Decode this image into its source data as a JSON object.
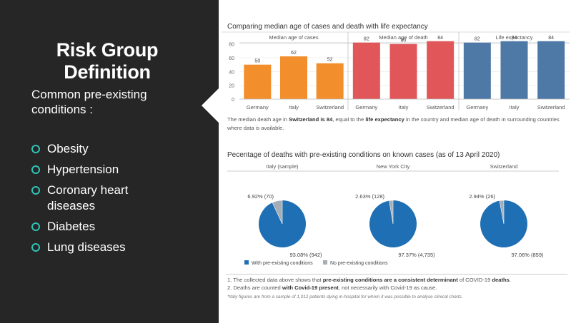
{
  "slide": {
    "title_line1": "Risk Group",
    "title_line2": "Definition",
    "subtitle": "Common pre-existing conditions :",
    "bullets": [
      "Obesity",
      "Hypertension",
      "Coronary heart diseases",
      "Diabetes",
      "Lung diseases"
    ],
    "bullet_color": "#2ec4b6",
    "left_bg": "#262626"
  },
  "age_chart": {
    "title": "Comparing median age of cases and death with life expectancy",
    "note_parts": [
      "The median death age in ",
      "Switzerland is 84",
      ", equal to the ",
      "life expectancy",
      " in the country and median age of death in surrounding countries where data is available."
    ]
  },
  "pie_chart": {
    "title": "Pecentage of deaths with pre-existing conditions on known cases (as of 13 April 2020)",
    "legend_with": "With pre-existing conditions",
    "legend_without": "No pre-existing conditions"
  },
  "footnotes": {
    "line1_parts": [
      "1. The collected data above shows that ",
      "pre-existing conditions are a consistent determinant",
      " of  COVID-19 ",
      "deaths",
      "."
    ],
    "line2_parts": [
      "2. Deaths are counted ",
      "with Covid-19 present",
      ", not necessarily with Covid-19 as cause."
    ],
    "italic": "*Italy figures are from a sample of  1,012 patients dying in-hospital for whom it was possible to analyse clinical charts."
  },
  "chart_data": [
    {
      "type": "bar",
      "title": "Comparing median age of cases and death with life expectancy",
      "categories": [
        "Germany",
        "Italy",
        "Switzerland"
      ],
      "yticks": [
        "80",
        "60",
        "40",
        "20",
        "0"
      ],
      "ylim": [
        0,
        90
      ],
      "series": [
        {
          "name": "Median age of cases",
          "color": "#f28e2b",
          "values": [
            50,
            62,
            52
          ],
          "labels": [
            "50",
            "62",
            "52"
          ]
        },
        {
          "name": "Median age of death",
          "color": "#e15759",
          "values": [
            82,
            80,
            84
          ],
          "labels": [
            "82",
            "80",
            "84"
          ]
        },
        {
          "name": "Life expectancy",
          "color": "#4e79a7",
          "values": [
            82,
            84,
            84
          ],
          "labels": [
            "82",
            "84",
            "84"
          ]
        }
      ]
    },
    {
      "type": "pie",
      "title": "Pecentage of deaths with pre-existing conditions on known cases (as of 13 April 2020)",
      "colors": {
        "with": "#1f6fb4",
        "without": "#a5adb5"
      },
      "pies": [
        {
          "name": "Italy (sample)",
          "with_pct": 93.08,
          "without_pct": 6.92,
          "with_label": "93.08% (942)",
          "without_label": "6.92% (70)"
        },
        {
          "name": "New York City",
          "with_pct": 97.37,
          "without_pct": 2.63,
          "with_label": "97.37% (4,735)",
          "without_label": "2.63% (128)"
        },
        {
          "name": "Switzerland",
          "with_pct": 97.06,
          "without_pct": 2.94,
          "with_label": "97.06% (859)",
          "without_label": "2.94% (26)"
        }
      ]
    }
  ]
}
